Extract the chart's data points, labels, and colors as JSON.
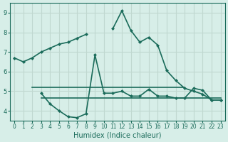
{
  "xlabel": "Humidex (Indice chaleur)",
  "ylabel": "",
  "bg_color": "#d7eee8",
  "grid_color": "#c0d8d0",
  "line_color": "#1a6b5a",
  "xlim": [
    -0.5,
    23.5
  ],
  "ylim": [
    3.5,
    9.5
  ],
  "xticks": [
    0,
    1,
    2,
    3,
    4,
    5,
    6,
    7,
    8,
    9,
    10,
    11,
    12,
    13,
    14,
    15,
    16,
    17,
    18,
    19,
    20,
    21,
    22,
    23
  ],
  "yticks": [
    4,
    5,
    6,
    7,
    8,
    9
  ],
  "line1_x": [
    0,
    1,
    2,
    3,
    4,
    5,
    6,
    7,
    8,
    9,
    10,
    11,
    12,
    13,
    14,
    15,
    16,
    17,
    18,
    19,
    20,
    21,
    22,
    23
  ],
  "line1_y": [
    6.7,
    6.5,
    6.7,
    7.0,
    7.2,
    7.4,
    7.5,
    7.7,
    7.9,
    null,
    null,
    8.2,
    9.1,
    8.1,
    7.5,
    7.75,
    7.35,
    6.05,
    5.55,
    5.15,
    5.0,
    4.85,
    4.55,
    4.55
  ],
  "line2_x": [
    3,
    4,
    5,
    6,
    7,
    8,
    9,
    10,
    11,
    12,
    13,
    14,
    15,
    16,
    17,
    18,
    19,
    20,
    21,
    22,
    23
  ],
  "line2_y": [
    4.9,
    4.35,
    4.0,
    3.7,
    3.65,
    3.85,
    6.85,
    4.9,
    4.9,
    5.0,
    4.75,
    4.75,
    5.1,
    4.75,
    4.75,
    4.65,
    4.65,
    5.15,
    5.05,
    4.55,
    4.55
  ],
  "hline1_x": [
    2,
    19
  ],
  "hline1_y": [
    5.2,
    5.2
  ],
  "hline2_x": [
    3,
    23
  ],
  "hline2_y": [
    4.65,
    4.65
  ],
  "figsize": [
    3.2,
    2.0
  ],
  "dpi": 100
}
